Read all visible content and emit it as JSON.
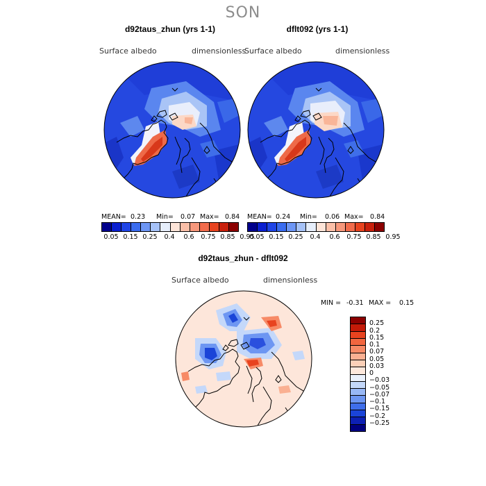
{
  "season": "SON",
  "left_panel": {
    "title": "d92taus_zhun (yrs 1-1)",
    "variable": "Surface albedo",
    "units": "dimensionless",
    "mean_label": "MEAN=",
    "mean": "0.23",
    "min_label": "Min=",
    "min": "0.07",
    "max_label": "Max=",
    "max": "0.84"
  },
  "right_panel": {
    "title": "dflt092 (yrs 1-1)",
    "variable": "Surface albedo",
    "units": "dimensionless",
    "mean_label": "MEAN=",
    "mean": "0.24",
    "min_label": "Min=",
    "min": "0.06",
    "max_label": "Max=",
    "max": "0.84"
  },
  "abs_colorbar": {
    "ticks": [
      "0.05",
      "0.15",
      "0.25",
      "0.4",
      "0.6",
      "0.75",
      "0.85",
      "0.95"
    ],
    "colors": [
      "#00008c",
      "#0a1fd0",
      "#1f44e6",
      "#3a6cf0",
      "#6d96f5",
      "#a6c2f8",
      "#e6eefb",
      "#fde4d8",
      "#fbbfa8",
      "#f7987c",
      "#f26c4c",
      "#e8431f",
      "#c9200c",
      "#8c0000"
    ]
  },
  "diff_panel": {
    "title": "d92taus_zhun - dflt092",
    "variable": "Surface albedo",
    "units": "dimensionless",
    "min_label": "MIN =",
    "min": "-0.31",
    "max_label": "MAX =",
    "max": "0.15"
  },
  "diff_colorbar": {
    "ticks": [
      "0.25",
      "0.2",
      "0.15",
      "0.1",
      "0.07",
      "0.05",
      "0.03",
      "0",
      "−0.03",
      "−0.05",
      "−0.07",
      "−0.1",
      "−0.15",
      "−0.2",
      "−0.25"
    ],
    "colors": [
      "#8c0000",
      "#c41a08",
      "#e8431f",
      "#f2663f",
      "#f78a66",
      "#fab092",
      "#fcd0b8",
      "#fde8dc",
      "#eaf1fc",
      "#c4d8fa",
      "#98b8f6",
      "#6d96f2",
      "#3f6eea",
      "#1a44d8",
      "#0d20b4",
      "#000080"
    ]
  }
}
